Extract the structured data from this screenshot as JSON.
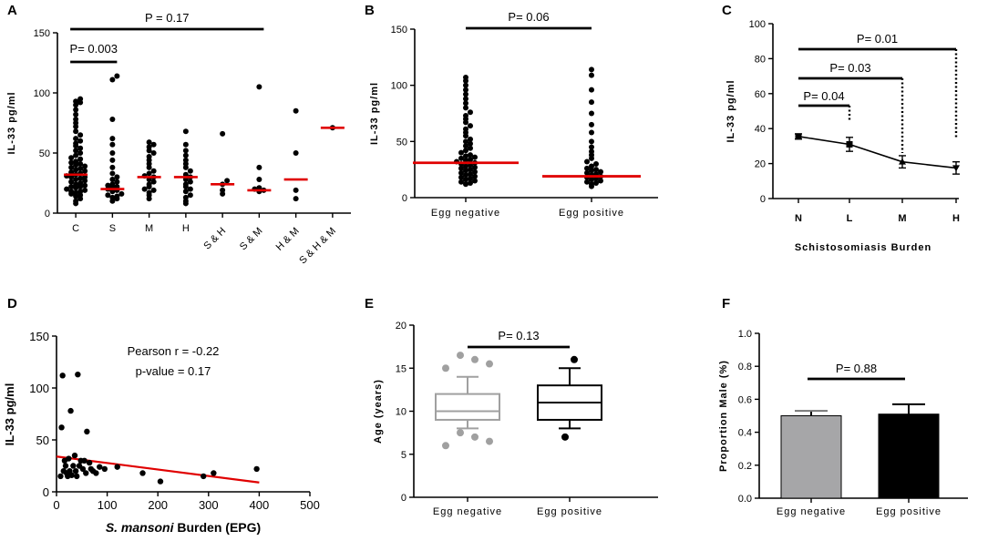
{
  "chart_data": [
    {
      "panel": "A",
      "type": "scatter",
      "title": "",
      "ylabel": "IL-33 pg/ml",
      "xlabel": "",
      "ylim": [
        0,
        150
      ],
      "yticks": [
        "0",
        "50",
        "100",
        "150"
      ],
      "categories": [
        "C",
        "S",
        "M",
        "H",
        "S & H",
        "S & M",
        "H & M",
        "S & H & M"
      ],
      "medians": [
        32,
        20,
        30,
        30,
        24,
        19,
        28,
        71
      ],
      "points": [
        [
          8,
          10,
          12,
          14,
          15,
          16,
          17,
          18,
          18,
          19,
          20,
          21,
          22,
          22,
          23,
          24,
          25,
          26,
          27,
          28,
          29,
          30,
          30,
          31,
          32,
          33,
          34,
          35,
          36,
          37,
          38,
          39,
          40,
          41,
          42,
          43,
          45,
          46,
          48,
          50,
          52,
          54,
          56,
          58,
          60,
          62,
          65,
          68,
          72,
          75,
          78,
          82,
          86,
          90,
          92,
          93,
          95
        ],
        [
          10,
          12,
          13,
          14,
          15,
          16,
          18,
          19,
          20,
          21,
          22,
          23,
          24,
          26,
          28,
          30,
          33,
          38,
          44,
          50,
          57,
          62,
          78,
          111,
          114
        ],
        [
          12,
          15,
          17,
          19,
          20,
          22,
          24,
          26,
          28,
          30,
          31,
          33,
          35,
          38,
          41,
          44,
          47,
          50,
          52,
          55,
          57,
          59
        ],
        [
          8,
          10,
          13,
          15,
          18,
          20,
          22,
          24,
          26,
          28,
          30,
          32,
          35,
          38,
          41,
          44,
          48,
          52,
          57,
          68
        ],
        [
          16,
          19,
          24,
          27,
          66
        ],
        [
          18,
          19,
          20,
          21,
          28,
          38,
          105
        ],
        [
          12,
          19,
          50,
          85
        ],
        [
          71
        ]
      ],
      "comparisons": [
        {
          "label": "P= 0.003",
          "from": "C",
          "to": "S"
        },
        {
          "label": "P = 0.17",
          "from": "C",
          "to": "S & M"
        }
      ]
    },
    {
      "panel": "B",
      "type": "scatter",
      "ylabel": "IL-33 pg/ml",
      "ylim": [
        0,
        150
      ],
      "yticks": [
        "0",
        "50",
        "100",
        "150"
      ],
      "categories": [
        "Egg negative",
        "Egg positive"
      ],
      "medians": [
        31,
        19
      ],
      "points": [
        [
          12,
          13,
          14,
          15,
          16,
          17,
          18,
          19,
          20,
          21,
          22,
          23,
          24,
          25,
          26,
          27,
          28,
          29,
          30,
          31,
          32,
          33,
          34,
          35,
          36,
          37,
          38,
          40,
          42,
          44,
          46,
          48,
          50,
          52,
          55,
          58,
          61,
          64,
          67,
          70,
          73,
          76,
          80,
          84,
          88,
          92,
          96,
          100,
          104,
          107
        ],
        [
          10,
          12,
          13,
          14,
          15,
          16,
          17,
          18,
          19,
          20,
          21,
          22,
          23,
          24,
          25,
          26,
          28,
          30,
          32,
          35,
          38,
          41,
          45,
          50,
          58,
          65,
          75,
          85,
          96,
          109,
          114
        ]
      ],
      "comparisons": [
        {
          "label": "P= 0.06",
          "from": "Egg negative",
          "to": "Egg positive"
        }
      ]
    },
    {
      "panel": "C",
      "type": "line",
      "ylabel": "IL-33 pg/ml",
      "xlabel": "Schistosomiasis Burden",
      "ylim": [
        0,
        100
      ],
      "yticks": [
        "0",
        "20",
        "40",
        "60",
        "80",
        "100"
      ],
      "categories": [
        "N",
        "L",
        "M",
        "H"
      ],
      "values": [
        35.5,
        31,
        21,
        17.5
      ],
      "errors": [
        1.5,
        4,
        3.5,
        3.5
      ],
      "comparisons": [
        {
          "label": "P= 0.04",
          "from": "N",
          "to": "L"
        },
        {
          "label": "P= 0.03",
          "from": "N",
          "to": "M"
        },
        {
          "label": "P= 0.01",
          "from": "N",
          "to": "H"
        }
      ]
    },
    {
      "panel": "D",
      "type": "scatter",
      "ylabel": "IL-33 pg/ml",
      "xlabel_italic": "S. mansoni",
      "xlabel_rest": " Burden (EPG)",
      "xlim": [
        0,
        500
      ],
      "ylim": [
        0,
        150
      ],
      "xticks": [
        "0",
        "100",
        "200",
        "300",
        "400",
        "500"
      ],
      "yticks": [
        "0",
        "50",
        "100",
        "150"
      ],
      "annotation_line1": "Pearson r = -0.22",
      "annotation_line2": "p-value = 0.17",
      "x": [
        8,
        10,
        12,
        14,
        16,
        18,
        20,
        22,
        24,
        26,
        28,
        30,
        33,
        36,
        38,
        40,
        42,
        45,
        48,
        52,
        55,
        58,
        60,
        65,
        68,
        72,
        78,
        85,
        95,
        120,
        170,
        205,
        290,
        310,
        395
      ],
      "y": [
        15,
        62,
        112,
        20,
        30,
        25,
        18,
        15,
        32,
        20,
        78,
        16,
        25,
        35,
        20,
        15,
        113,
        25,
        30,
        22,
        30,
        18,
        58,
        28,
        22,
        20,
        18,
        24,
        22,
        24,
        18,
        10,
        15,
        18,
        22
      ],
      "fit": {
        "x": [
          0,
          400
        ],
        "y": [
          34,
          9
        ]
      }
    },
    {
      "panel": "E",
      "type": "box",
      "ylabel": "Age (years)",
      "ylim": [
        0,
        20
      ],
      "yticks": [
        "0",
        "5",
        "10",
        "15",
        "20"
      ],
      "categories": [
        "Egg negative",
        "Egg positive"
      ],
      "boxes": [
        {
          "min": 8,
          "q1": 9,
          "median": 10,
          "q3": 12,
          "max": 14,
          "outliers": [
            6,
            6.5,
            7,
            7.5,
            15,
            15.5,
            16,
            16.5
          ],
          "color": "#a0a0a0"
        },
        {
          "min": 8,
          "q1": 9,
          "median": 11,
          "q3": 13,
          "max": 15,
          "outliers": [
            7,
            16
          ],
          "color": "#000000"
        }
      ],
      "comparisons": [
        {
          "label": "P= 0.13",
          "from": "Egg negative",
          "to": "Egg positive"
        }
      ]
    },
    {
      "panel": "F",
      "type": "bar",
      "ylabel": "Proportion Male (%)",
      "ylim": [
        0,
        1.0
      ],
      "yticks": [
        "0.0",
        "0.2",
        "0.4",
        "0.6",
        "0.8",
        "1.0"
      ],
      "categories": [
        "Egg negative",
        "Egg positive"
      ],
      "values": [
        0.5,
        0.51
      ],
      "errors": [
        0.03,
        0.06
      ],
      "colors": [
        "#a6a6a8",
        "#000000"
      ],
      "comparisons": [
        {
          "label": "P= 0.88",
          "from": "Egg negative",
          "to": "Egg positive"
        }
      ]
    }
  ]
}
